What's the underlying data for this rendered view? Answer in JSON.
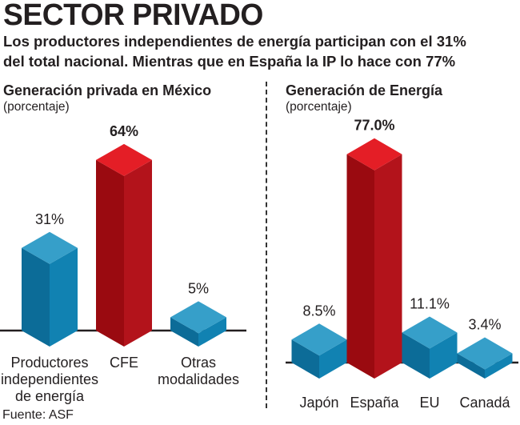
{
  "header": {
    "title": "SECTOR PRIVADO",
    "subtitle_line1": "Los productores independientes de energía participan con el 31%",
    "subtitle_line2": "del total nacional. Mientras que en España la IP lo hace con 77%"
  },
  "source": "Fuente: ASF",
  "colors": {
    "red_top": "#e41e26",
    "red_left": "#9a0a10",
    "red_right": "#b3131b",
    "blue_top": "#369fc9",
    "blue_left": "#0c6c98",
    "blue_right": "#1182b2",
    "baseline": "#231f20"
  },
  "chart_data": [
    {
      "type": "bar",
      "title": "Generación privada en México",
      "unit_label": "(porcentaje)",
      "categories": [
        "Productores independientes de energía",
        "CFE",
        "Otras modalidades"
      ],
      "category_lines": [
        [
          "Productores",
          "independientes",
          "de energía"
        ],
        [
          "CFE"
        ],
        [
          "Otras",
          "modalidades"
        ]
      ],
      "values": [
        31,
        64,
        5
      ],
      "value_labels": [
        "31%",
        "64%",
        "5%"
      ],
      "highlight": [
        false,
        true,
        false
      ],
      "xlabel": "",
      "ylabel": "Porcentaje",
      "grid": false
    },
    {
      "type": "bar",
      "title": "Generación de Energía",
      "unit_label": "(porcentaje)",
      "categories": [
        "Japón",
        "España",
        "EU",
        "Canadá"
      ],
      "category_lines": [
        [
          "Japón"
        ],
        [
          "España"
        ],
        [
          "EU"
        ],
        [
          "Canadá"
        ]
      ],
      "values": [
        8.5,
        77.0,
        11.1,
        3.4
      ],
      "value_labels": [
        "8.5%",
        "77.0%",
        "11.1%",
        "3.4%"
      ],
      "highlight": [
        false,
        true,
        false,
        false
      ],
      "xlabel": "",
      "ylabel": "Porcentaje",
      "grid": false
    }
  ]
}
